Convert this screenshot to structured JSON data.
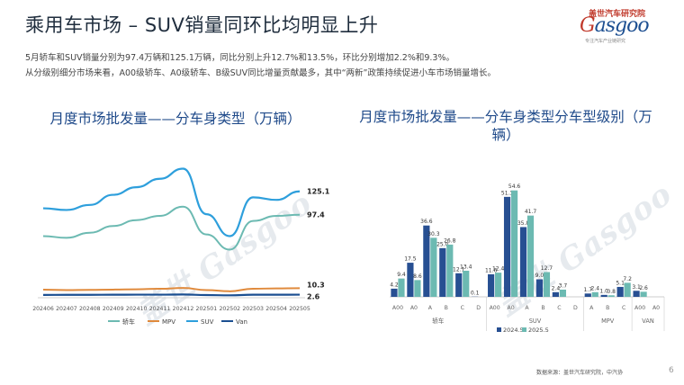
{
  "slide": {
    "title": "乘用车市场 – SUV销量同环比均明显上升",
    "desc_line1": "5月轿车和SUV销量分别为97.4万辆和125.1万辆，同比分别上升12.7%和13.5%，环比分别增加2.2%和9.3%。",
    "desc_line2": "从分级别细分市场来看，A00级轿车、A0级轿车、B级SUV同比增量贡献最多，其中“两新”政策持续促进小车市场销量增长。",
    "source": "数据来源：盖世汽车研究院，中汽协",
    "page": "6"
  },
  "logo": {
    "cn": "盖世汽车研究院",
    "en_g": "G",
    "en_rest": "asgoo",
    "tagline": "专注汽车产业链研究",
    "watermark": "盖世 Gasgoo"
  },
  "colors": {
    "car": "#6cbab2",
    "mpv": "#e08a3c",
    "suv": "#2e9fdc",
    "van": "#1b4f91",
    "bar2024": "#274f92",
    "bar2025": "#6cbab2"
  },
  "chart_data": [
    {
      "type": "line",
      "title": "月度市场批发量——分车身类型（万辆）",
      "x": [
        "202406",
        "202407",
        "202408",
        "202409",
        "202410",
        "202411",
        "202412",
        "202501",
        "202502",
        "202503",
        "202504",
        "202505"
      ],
      "series": [
        {
          "name": "轿车",
          "values": [
            72,
            70,
            76,
            84,
            91,
            96,
            107,
            74,
            56,
            90,
            96,
            97.4
          ]
        },
        {
          "name": "MPV",
          "values": [
            8.5,
            8.0,
            8.3,
            8.6,
            9.0,
            9.6,
            10.5,
            8.0,
            6.6,
            9.6,
            10.0,
            10.3
          ]
        },
        {
          "name": "SUV",
          "values": [
            105,
            103,
            109,
            121,
            130,
            140,
            152,
            98,
            72,
            118,
            115,
            125.1
          ]
        },
        {
          "name": "Van",
          "values": [
            2.3,
            2.4,
            2.4,
            2.5,
            2.6,
            2.6,
            2.8,
            2.1,
            1.8,
            2.5,
            2.5,
            2.6
          ]
        }
      ],
      "end_labels": [
        "97.4",
        "10.3",
        "125.1",
        "2.6"
      ],
      "legend": "bottom"
    },
    {
      "type": "bar",
      "title": "月度市场批发量——分车身类型分车型级别（万辆）",
      "categories": [
        "A00",
        "A0",
        "A",
        "B",
        "C",
        "D",
        "A00",
        "A0",
        "A",
        "B",
        "C",
        "D",
        "A",
        "B",
        "C",
        "A00",
        "A0"
      ],
      "groups": [
        {
          "name": "轿车",
          "span": 6
        },
        {
          "name": "SUV",
          "span": 6
        },
        {
          "name": "MPV",
          "span": 3
        },
        {
          "name": "VAN",
          "span": 2
        }
      ],
      "series": [
        {
          "name": "2024.5",
          "values": [
            4.2,
            17.5,
            36.6,
            25.0,
            12.1,
            0.1,
            11.6,
            51.3,
            35.8,
            9.0,
            2.4,
            0.0,
            1.7,
            1.0,
            5.1,
            3.1,
            0.0
          ]
        },
        {
          "name": "2025.5",
          "values": [
            9.4,
            8.6,
            30.3,
            26.8,
            13.4,
            0.0,
            12.4,
            54.6,
            41.7,
            12.7,
            3.7,
            0.0,
            2.4,
            0.8,
            7.2,
            2.6,
            0.0
          ]
        }
      ],
      "labels_2024": [
        "4.2",
        "17.5",
        "36.6",
        "25.0",
        "12.1",
        "0.1",
        "11.6",
        "51.3",
        "35.8",
        "9.0",
        "2.4",
        "",
        "1.7",
        "1.0",
        "5.1",
        "3.1",
        ""
      ],
      "labels_2025": [
        "9.4",
        "8.6",
        "30.3",
        "26.8",
        "13.4",
        "",
        "12.4",
        "54.6",
        "41.7",
        "12.7",
        "3.7",
        "",
        "2.4",
        "0.8",
        "7.2",
        "2.6",
        ""
      ],
      "legend": "bottom"
    }
  ]
}
